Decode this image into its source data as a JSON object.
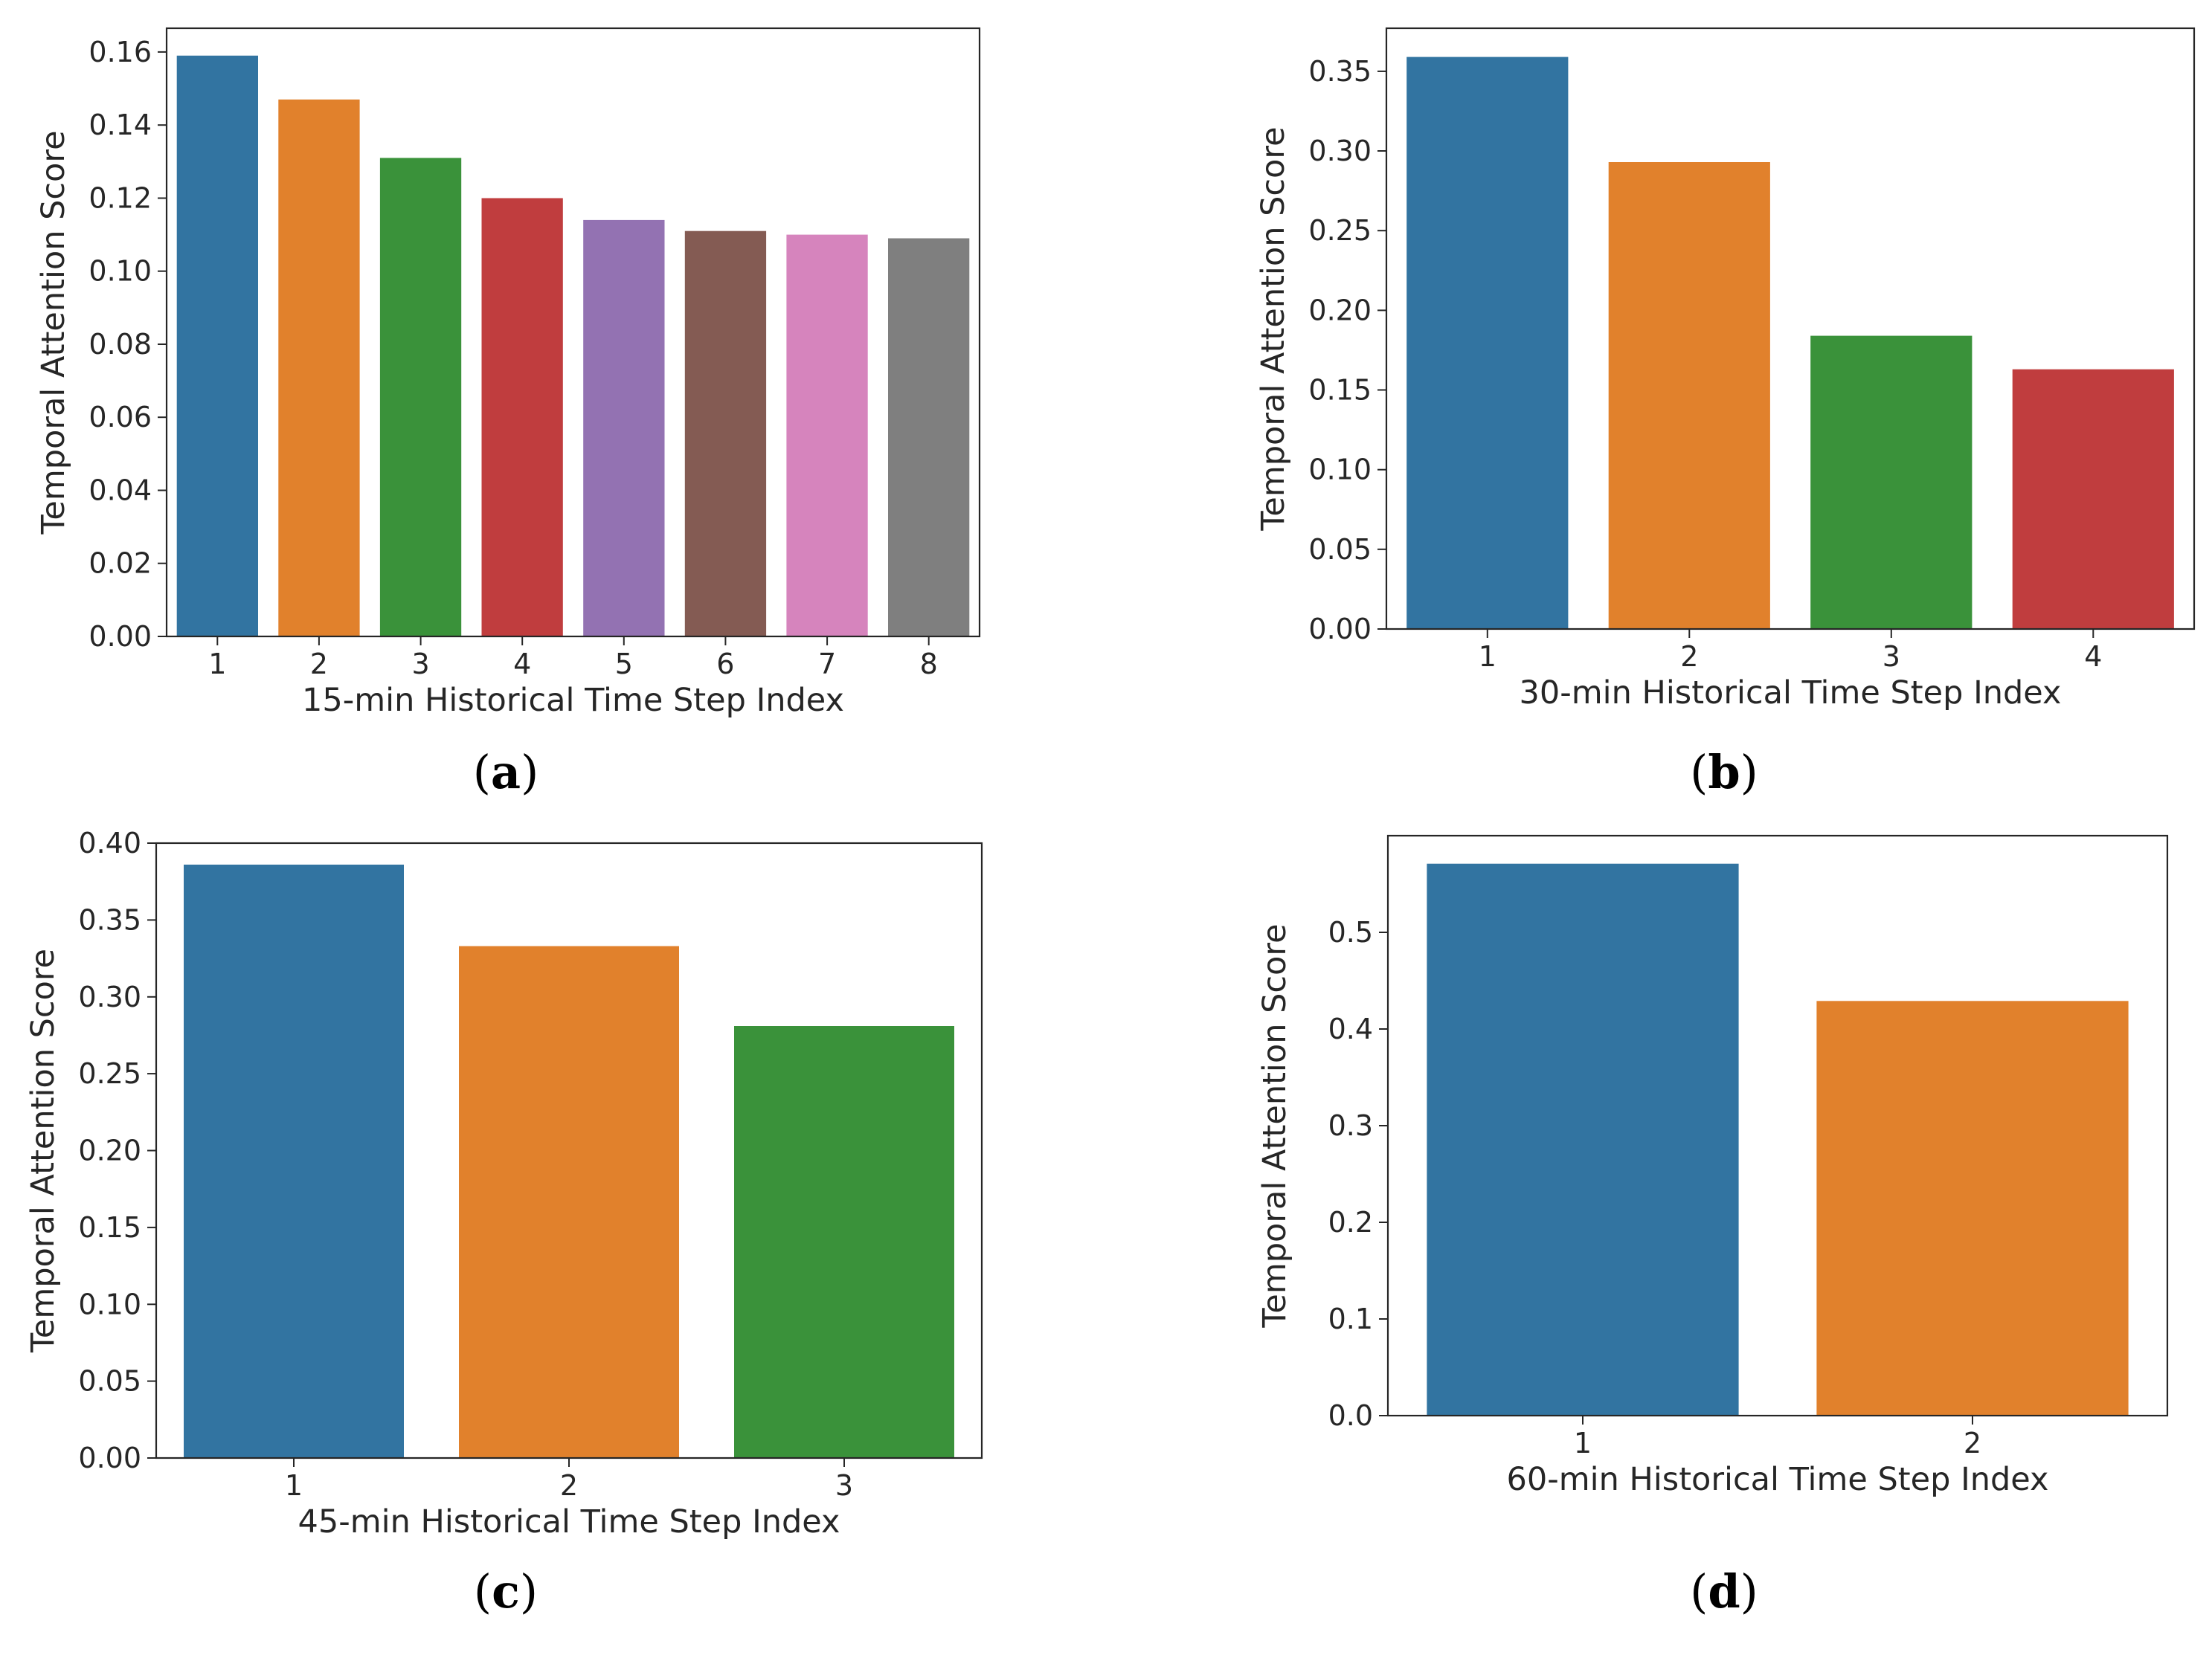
{
  "figure": {
    "panels_count": 4
  },
  "chart_data": [
    {
      "type": "bar",
      "panel_label": "a",
      "categories": [
        "1",
        "2",
        "3",
        "4",
        "5",
        "6",
        "7",
        "8"
      ],
      "values": [
        0.159,
        0.147,
        0.131,
        0.12,
        0.114,
        0.111,
        0.11,
        0.109
      ],
      "colors": [
        "#3274a1",
        "#e1812c",
        "#3a923a",
        "#c03d3e",
        "#9372b2",
        "#845b53",
        "#d684bd",
        "#7f7f7f"
      ],
      "xlabel": "15-min Historical Time Step Index",
      "ylabel": "Temporal Attention Score",
      "ylim": [
        0,
        0.1665
      ],
      "yticks": [
        0.0,
        0.02,
        0.04,
        0.06,
        0.08,
        0.1,
        0.12,
        0.14,
        0.16
      ],
      "ytick_labels": [
        "0.00",
        "0.02",
        "0.04",
        "0.06",
        "0.08",
        "0.10",
        "0.12",
        "0.14",
        "0.16"
      ],
      "grid": false,
      "legend": "none"
    },
    {
      "type": "bar",
      "panel_label": "b",
      "categories": [
        "1",
        "2",
        "3",
        "4"
      ],
      "values": [
        0.359,
        0.293,
        0.184,
        0.163
      ],
      "colors": [
        "#3274a1",
        "#e1812c",
        "#3a923a",
        "#c03d3e"
      ],
      "xlabel": "30-min Historical Time Step Index",
      "ylabel": "Temporal Attention Score",
      "ylim": [
        0,
        0.377
      ],
      "yticks": [
        0.0,
        0.05,
        0.1,
        0.15,
        0.2,
        0.25,
        0.3,
        0.35
      ],
      "ytick_labels": [
        "0.00",
        "0.05",
        "0.10",
        "0.15",
        "0.20",
        "0.25",
        "0.30",
        "0.35"
      ],
      "grid": false,
      "legend": "none"
    },
    {
      "type": "bar",
      "panel_label": "c",
      "categories": [
        "1",
        "2",
        "3"
      ],
      "values": [
        0.386,
        0.333,
        0.281
      ],
      "colors": [
        "#3274a1",
        "#e1812c",
        "#3a923a"
      ],
      "xlabel": "45-min Historical Time Step Index",
      "ylabel": "Temporal Attention Score",
      "ylim": [
        0,
        0.4
      ],
      "yticks": [
        0.0,
        0.05,
        0.1,
        0.15,
        0.2,
        0.25,
        0.3,
        0.35,
        0.4
      ],
      "ytick_labels": [
        "0.00",
        "0.05",
        "0.10",
        "0.15",
        "0.20",
        "0.25",
        "0.30",
        "0.35",
        "0.40"
      ],
      "grid": false,
      "legend": "none"
    },
    {
      "type": "bar",
      "panel_label": "d",
      "categories": [
        "1",
        "2"
      ],
      "values": [
        0.571,
        0.429
      ],
      "colors": [
        "#3274a1",
        "#e1812c"
      ],
      "xlabel": "60-min Historical Time Step Index",
      "ylabel": "Temporal Attention Score",
      "ylim": [
        0,
        0.6
      ],
      "yticks": [
        0.0,
        0.1,
        0.2,
        0.3,
        0.4,
        0.5
      ],
      "ytick_labels": [
        "0.0",
        "0.1",
        "0.2",
        "0.3",
        "0.4",
        "0.5"
      ],
      "grid": false,
      "legend": "none"
    }
  ]
}
